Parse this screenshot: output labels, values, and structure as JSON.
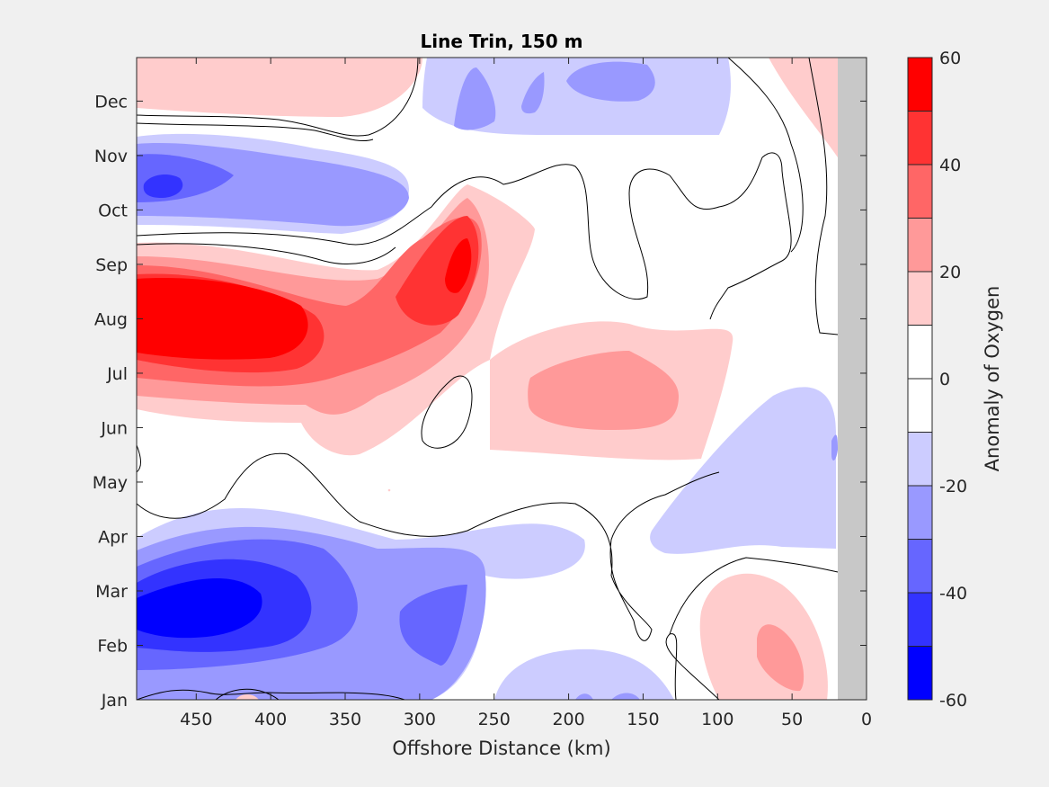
{
  "chart_data": {
    "type": "heatmap",
    "subtype": "filled-contour",
    "title": "Line Trin, 150 m",
    "xlabel": "Offshore Distance (km)",
    "ylabel": "",
    "xlim": [
      490,
      0
    ],
    "x_reversed": true,
    "xticks": [
      450,
      400,
      350,
      300,
      250,
      200,
      150,
      100,
      50,
      0
    ],
    "ylim": [
      0,
      11.8
    ],
    "yticks": [
      {
        "label": "Jan",
        "value": 0
      },
      {
        "label": "Feb",
        "value": 1
      },
      {
        "label": "Mar",
        "value": 2
      },
      {
        "label": "Apr",
        "value": 3
      },
      {
        "label": "May",
        "value": 4
      },
      {
        "label": "Jun",
        "value": 5
      },
      {
        "label": "Jul",
        "value": 6
      },
      {
        "label": "Aug",
        "value": 7
      },
      {
        "label": "Sep",
        "value": 8
      },
      {
        "label": "Oct",
        "value": 9
      },
      {
        "label": "Nov",
        "value": 10
      },
      {
        "label": "Dec",
        "value": 11
      }
    ],
    "no_data_region": {
      "x_from": 20,
      "x_to": 0,
      "color": "#c8c8c8"
    },
    "colorbar": {
      "label": "Anomaly of Oxygen",
      "range": [
        -60,
        60
      ],
      "tick_values": [
        60,
        40,
        20,
        0,
        -20,
        -40,
        -60
      ],
      "levels": [
        -60,
        -50,
        -40,
        -30,
        -20,
        -10,
        0,
        10,
        20,
        30,
        40,
        50,
        60
      ],
      "colors": [
        "#0000ff",
        "#3333ff",
        "#6666ff",
        "#9999ff",
        "#ccccff",
        "#ffffff",
        "#ffffff",
        "#ffcccc",
        "#ff9999",
        "#ff6666",
        "#ff3333",
        "#ff0000"
      ]
    },
    "anomaly_features": [
      {
        "name": "max-positive",
        "x": 440,
        "month": 7.1,
        "value": 60
      },
      {
        "name": "positive",
        "x": 275,
        "month": 7.9,
        "value": 50
      },
      {
        "name": "positive",
        "x": 175,
        "month": 5.6,
        "value": 20
      },
      {
        "name": "positive",
        "x": 60,
        "month": 1.0,
        "value": 20
      },
      {
        "name": "max-negative",
        "x": 445,
        "month": 1.6,
        "value": -60
      },
      {
        "name": "negative",
        "x": 470,
        "month": 10.3,
        "value": -40
      },
      {
        "name": "negative",
        "x": 290,
        "month": 1.5,
        "value": -30
      },
      {
        "name": "negative",
        "x": 170,
        "month": 11.6,
        "value": -30
      }
    ]
  }
}
